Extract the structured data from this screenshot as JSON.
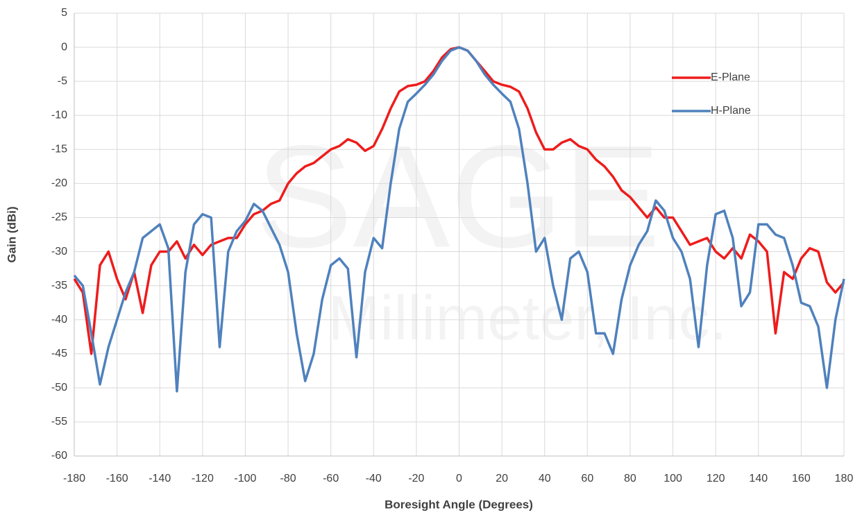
{
  "chart_data": {
    "type": "line",
    "xlabel": "Boresight Angle (Degrees)",
    "ylabel": "Gain (dBi)",
    "watermark": "SAGE",
    "watermark_sub": "Millimeter, Inc.",
    "x": [
      -180,
      -176,
      -172,
      -168,
      -164,
      -160,
      -156,
      -152,
      -148,
      -144,
      -140,
      -136,
      -132,
      -128,
      -124,
      -120,
      -116,
      -112,
      -108,
      -104,
      -100,
      -96,
      -92,
      -88,
      -84,
      -80,
      -76,
      -72,
      -68,
      -64,
      -60,
      -56,
      -52,
      -48,
      -44,
      -40,
      -36,
      -32,
      -28,
      -24,
      -20,
      -16,
      -12,
      -8,
      -4,
      0,
      4,
      8,
      12,
      16,
      20,
      24,
      28,
      32,
      36,
      40,
      44,
      48,
      52,
      56,
      60,
      64,
      68,
      72,
      76,
      80,
      84,
      88,
      92,
      96,
      100,
      104,
      108,
      112,
      116,
      120,
      124,
      128,
      132,
      136,
      140,
      144,
      148,
      152,
      156,
      160,
      164,
      168,
      172,
      176,
      180
    ],
    "series": [
      {
        "name": "E-Plane",
        "color": "#ee1c1c",
        "values": [
          -34,
          -36,
          -45,
          -32,
          -30,
          -34,
          -37,
          -33,
          -39,
          -32,
          -30,
          -30,
          -28.5,
          -31,
          -29,
          -30.5,
          -29,
          -28.5,
          -28,
          -28,
          -26,
          -24.5,
          -24,
          -23,
          -22.5,
          -20,
          -18.5,
          -17.5,
          -17,
          -16,
          -15,
          -14.5,
          -13.5,
          -14,
          -15.2,
          -14.5,
          -12,
          -9,
          -6.5,
          -5.7,
          -5.5,
          -5,
          -3.5,
          -1.5,
          -0.3,
          0,
          -0.5,
          -2,
          -3.5,
          -5,
          -5.5,
          -5.8,
          -6.5,
          -9,
          -12.5,
          -15,
          -15,
          -14,
          -13.5,
          -14.5,
          -15,
          -16.5,
          -17.5,
          -19,
          -21,
          -22,
          -23.5,
          -25,
          -23.5,
          -25,
          -25,
          -27,
          -29,
          -28.5,
          -28,
          -30,
          -31,
          -29.5,
          -31,
          -27.5,
          -28.5,
          -30,
          -42,
          -33,
          -34,
          -31,
          -29.5,
          -30,
          -34.5,
          -36,
          -34.5
        ]
      },
      {
        "name": "H-Plane",
        "color": "#4f81bd",
        "values": [
          -33.5,
          -35,
          -42,
          -49.5,
          -44,
          -40,
          -36,
          -33,
          -28,
          -27,
          -26,
          -29.5,
          -50.5,
          -33,
          -26,
          -24.5,
          -25,
          -44,
          -30,
          -27,
          -25.5,
          -23,
          -24,
          -26.5,
          -29,
          -33,
          -42,
          -49,
          -45,
          -37,
          -32,
          -31,
          -32.5,
          -45.5,
          -33,
          -28,
          -29.5,
          -20,
          -12,
          -8,
          -6.8,
          -5.5,
          -4,
          -2,
          -0.5,
          0,
          -0.5,
          -2,
          -4,
          -5.5,
          -6.8,
          -8,
          -12,
          -20,
          -30,
          -28,
          -35,
          -40,
          -31,
          -30,
          -33,
          -42,
          -42,
          -45,
          -37,
          -32,
          -29,
          -27,
          -22.5,
          -24,
          -28,
          -30,
          -34,
          -44,
          -32,
          -24.5,
          -24,
          -28,
          -38,
          -36,
          -26,
          -26,
          -27.5,
          -28,
          -32,
          -37.5,
          -38,
          -41,
          -50,
          -40,
          -34
        ]
      }
    ],
    "xlim": [
      -180,
      180
    ],
    "xticks": [
      -180,
      -160,
      -140,
      -120,
      -100,
      -80,
      -60,
      -40,
      -20,
      0,
      20,
      40,
      60,
      80,
      100,
      120,
      140,
      160,
      180
    ],
    "ylim": [
      -60,
      5
    ],
    "yticks": [
      -60,
      -55,
      -50,
      -45,
      -40,
      -35,
      -30,
      -25,
      -20,
      -15,
      -10,
      -5,
      0,
      5
    ],
    "grid": true,
    "legend": "upper right"
  }
}
